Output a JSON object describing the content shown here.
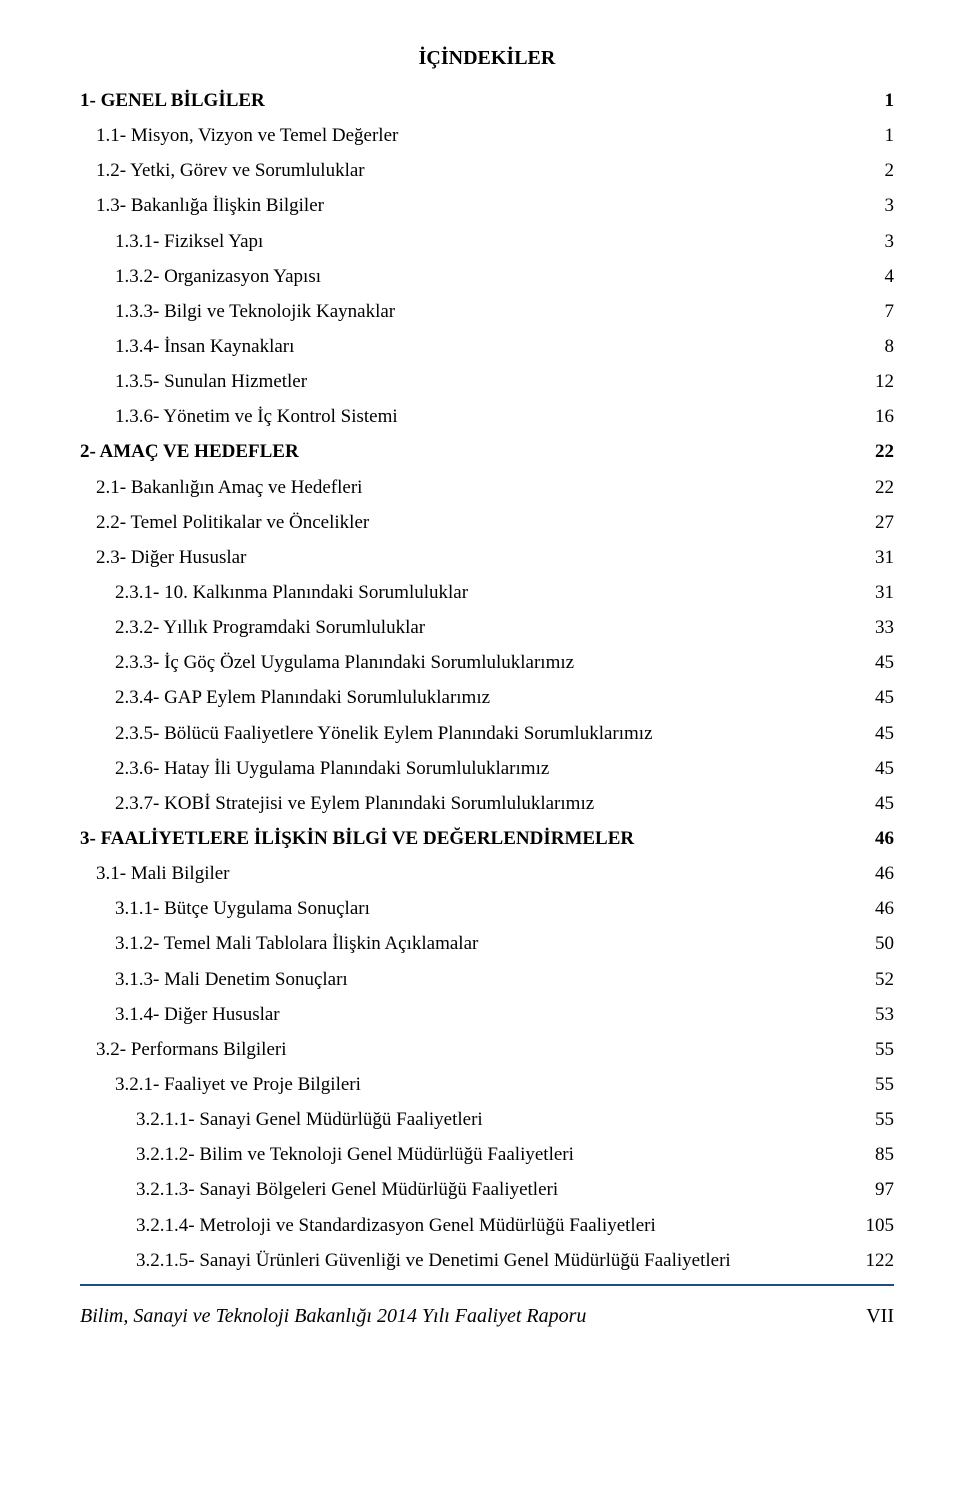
{
  "title": "İÇİNDEKİLER",
  "toc": [
    {
      "level": 0,
      "bold": true,
      "label": "1- GENEL BİLGİLER",
      "page": "1"
    },
    {
      "level": 1,
      "bold": false,
      "label": "1.1- Misyon, Vizyon ve Temel Değerler",
      "page": "1"
    },
    {
      "level": 1,
      "bold": false,
      "label": "1.2- Yetki, Görev ve Sorumluluklar",
      "page": "2"
    },
    {
      "level": 1,
      "bold": false,
      "label": "1.3- Bakanlığa İlişkin Bilgiler",
      "page": "3"
    },
    {
      "level": 2,
      "bold": false,
      "label": "1.3.1-  Fiziksel Yapı",
      "page": "3"
    },
    {
      "level": 2,
      "bold": false,
      "label": "1.3.2-  Organizasyon Yapısı",
      "page": "4"
    },
    {
      "level": 2,
      "bold": false,
      "label": "1.3.3-  Bilgi ve Teknolojik Kaynaklar",
      "page": "7"
    },
    {
      "level": 2,
      "bold": false,
      "label": "1.3.4-  İnsan Kaynakları",
      "page": "8"
    },
    {
      "level": 2,
      "bold": false,
      "label": "1.3.5-  Sunulan Hizmetler",
      "page": "12"
    },
    {
      "level": 2,
      "bold": false,
      "label": "1.3.6-  Yönetim ve İç Kontrol Sistemi",
      "page": "16"
    },
    {
      "level": 0,
      "bold": true,
      "label": "2- AMAÇ VE HEDEFLER",
      "page": "22"
    },
    {
      "level": 1,
      "bold": false,
      "label": "2.1- Bakanlığın Amaç ve Hedefleri",
      "page": "22"
    },
    {
      "level": 1,
      "bold": false,
      "label": "2.2- Temel Politikalar ve Öncelikler",
      "page": "27"
    },
    {
      "level": 1,
      "bold": false,
      "label": "2.3- Diğer Hususlar",
      "page": "31"
    },
    {
      "level": 2,
      "bold": false,
      "label": "2.3.1-  10. Kalkınma Planındaki Sorumluluklar",
      "page": "31"
    },
    {
      "level": 2,
      "bold": false,
      "label": "2.3.2-  Yıllık Programdaki Sorumluluklar",
      "page": "33"
    },
    {
      "level": 2,
      "bold": false,
      "label": "2.3.3-  İç Göç Özel Uygulama Planındaki Sorumluluklarımız",
      "page": "45"
    },
    {
      "level": 2,
      "bold": false,
      "label": "2.3.4-  GAP Eylem Planındaki Sorumluluklarımız",
      "page": "45"
    },
    {
      "level": 2,
      "bold": false,
      "label": "2.3.5-  Bölücü Faaliyetlere Yönelik Eylem Planındaki Sorumluklarımız",
      "page": "45"
    },
    {
      "level": 2,
      "bold": false,
      "label": "2.3.6-  Hatay İli Uygulama Planındaki Sorumluluklarımız",
      "page": "45"
    },
    {
      "level": 2,
      "bold": false,
      "label": "2.3.7-  KOBİ Stratejisi ve Eylem Planındaki Sorumluluklarımız",
      "page": "45"
    },
    {
      "level": 0,
      "bold": true,
      "label": "3- FAALİYETLERE İLİŞKİN BİLGİ VE DEĞERLENDİRMELER",
      "page": "46"
    },
    {
      "level": 1,
      "bold": false,
      "label": "3.1- Mali Bilgiler",
      "page": "46"
    },
    {
      "level": 2,
      "bold": false,
      "label": "3.1.1-  Bütçe Uygulama Sonuçları",
      "page": "46"
    },
    {
      "level": 2,
      "bold": false,
      "label": "3.1.2-  Temel Mali Tablolara İlişkin Açıklamalar",
      "page": "50"
    },
    {
      "level": 2,
      "bold": false,
      "label": "3.1.3-  Mali Denetim Sonuçları",
      "page": "52"
    },
    {
      "level": 2,
      "bold": false,
      "label": "3.1.4-  Diğer Hususlar",
      "page": "53"
    },
    {
      "level": 1,
      "bold": false,
      "label": "3.2- Performans Bilgileri",
      "page": "55"
    },
    {
      "level": 2,
      "bold": false,
      "label": "3.2.1-  Faaliyet ve Proje Bilgileri",
      "page": "55"
    },
    {
      "level": 3,
      "bold": false,
      "label": "3.2.1.1-  Sanayi Genel Müdürlüğü Faaliyetleri",
      "page": "55"
    },
    {
      "level": 3,
      "bold": false,
      "label": "3.2.1.2-  Bilim ve Teknoloji Genel Müdürlüğü Faaliyetleri",
      "page": "85"
    },
    {
      "level": 3,
      "bold": false,
      "label": "3.2.1.3-  Sanayi Bölgeleri Genel Müdürlüğü Faaliyetleri",
      "page": "97"
    },
    {
      "level": 3,
      "bold": false,
      "label": "3.2.1.4-  Metroloji ve Standardizasyon Genel Müdürlüğü Faaliyetleri",
      "page": "105"
    },
    {
      "level": 3,
      "bold": false,
      "label": "3.2.1.5-  Sanayi Ürünleri Güvenliği ve Denetimi Genel Müdürlüğü Faaliyetleri",
      "page": "122"
    }
  ],
  "footer": {
    "left": "Bilim, Sanayi ve Teknoloji Bakanlığı 2014 Yılı Faaliyet Raporu",
    "right": "VII"
  },
  "colors": {
    "text": "#000000",
    "rule": "#1f4e79",
    "background": "#ffffff"
  }
}
